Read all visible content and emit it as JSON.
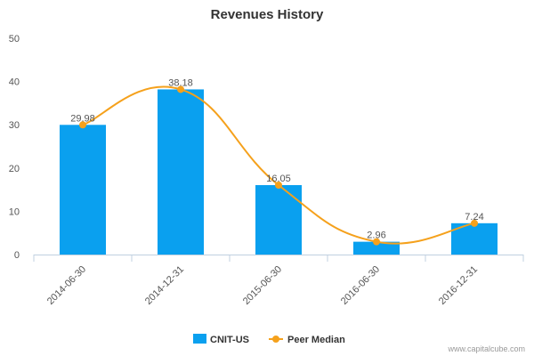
{
  "chart_data": {
    "type": "bar",
    "title": "Revenues History",
    "categories": [
      "2014-06-30",
      "2014-12-31",
      "2015-06-30",
      "2016-06-30",
      "2016-12-31"
    ],
    "ylim": [
      0,
      50
    ],
    "yticks": [
      0,
      10,
      20,
      30,
      40,
      50
    ],
    "grid": false,
    "series": [
      {
        "name": "CNIT-US",
        "type": "bar",
        "color": "#0aa0ef",
        "values": [
          29.98,
          38.18,
          16.05,
          2.96,
          7.24
        ],
        "data_labels": [
          "29.98",
          "38.18",
          "16.05",
          "2.96",
          "7.24"
        ]
      },
      {
        "name": "Peer Median",
        "type": "line",
        "smooth": true,
        "color": "#f5a11c",
        "values": [
          29.98,
          38.18,
          16.05,
          2.96,
          7.24
        ]
      }
    ],
    "legend_position": "bottom-center"
  },
  "footer": {
    "source": "www.capitalcube.com"
  }
}
